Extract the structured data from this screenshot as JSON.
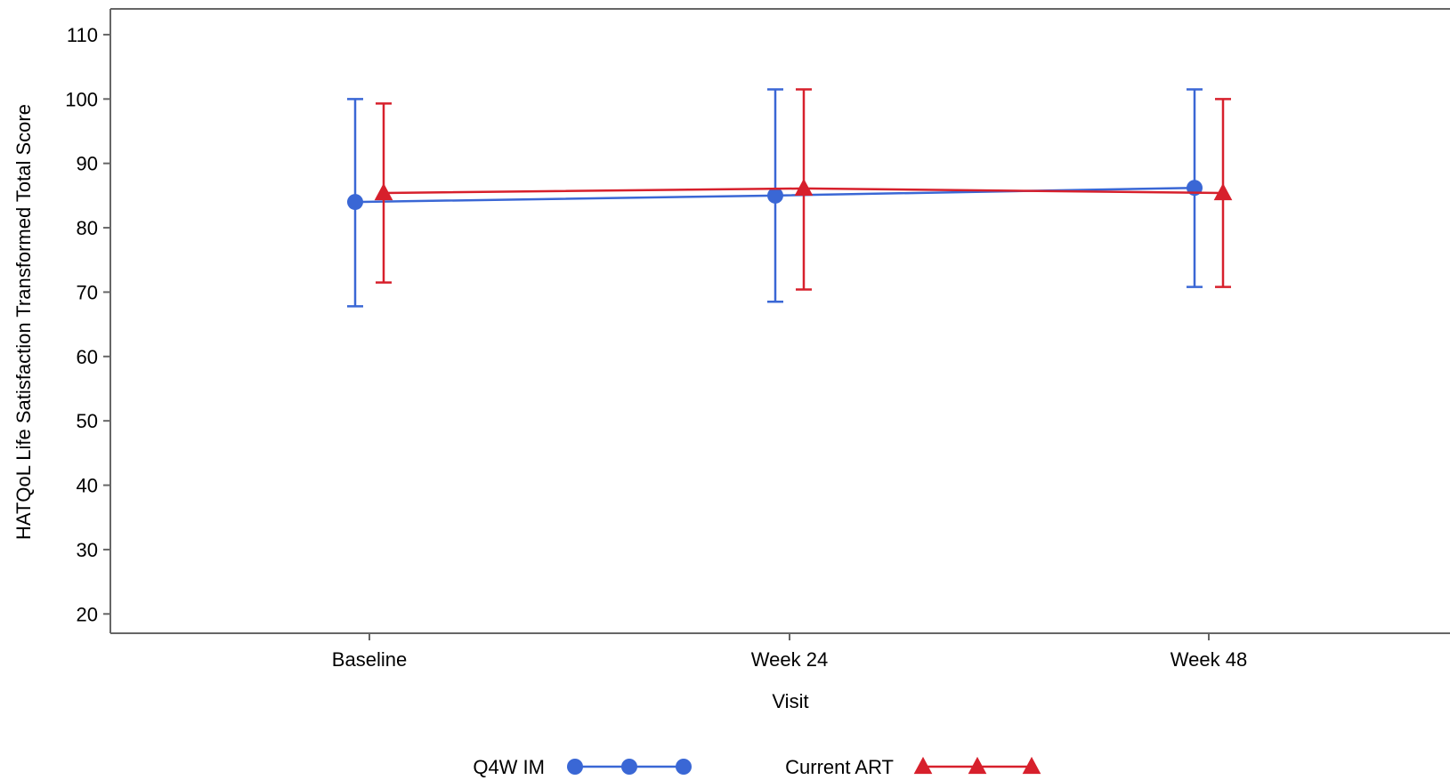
{
  "chart_data": {
    "type": "line",
    "xlabel": "Visit",
    "ylabel": "HATQoL Life Satisfaction Transformed Total Score",
    "categories": [
      "Baseline",
      "Week 24",
      "Week 48"
    ],
    "ylim": [
      17,
      114
    ],
    "yticks": [
      20,
      30,
      40,
      50,
      60,
      70,
      80,
      90,
      100,
      110
    ],
    "grid": false,
    "legend_position": "bottom",
    "series": [
      {
        "name": "Q4W IM",
        "color": "#3a67d5",
        "marker": "circle",
        "values": [
          84.0,
          85.0,
          86.2
        ],
        "lower": [
          67.8,
          68.5,
          70.8
        ],
        "upper": [
          100.0,
          101.5,
          101.5
        ]
      },
      {
        "name": "Current ART",
        "color": "#d7202c",
        "marker": "triangle",
        "values": [
          85.4,
          86.1,
          85.4
        ],
        "lower": [
          71.5,
          70.4,
          70.8
        ],
        "upper": [
          99.3,
          101.5,
          100.0
        ]
      }
    ]
  }
}
